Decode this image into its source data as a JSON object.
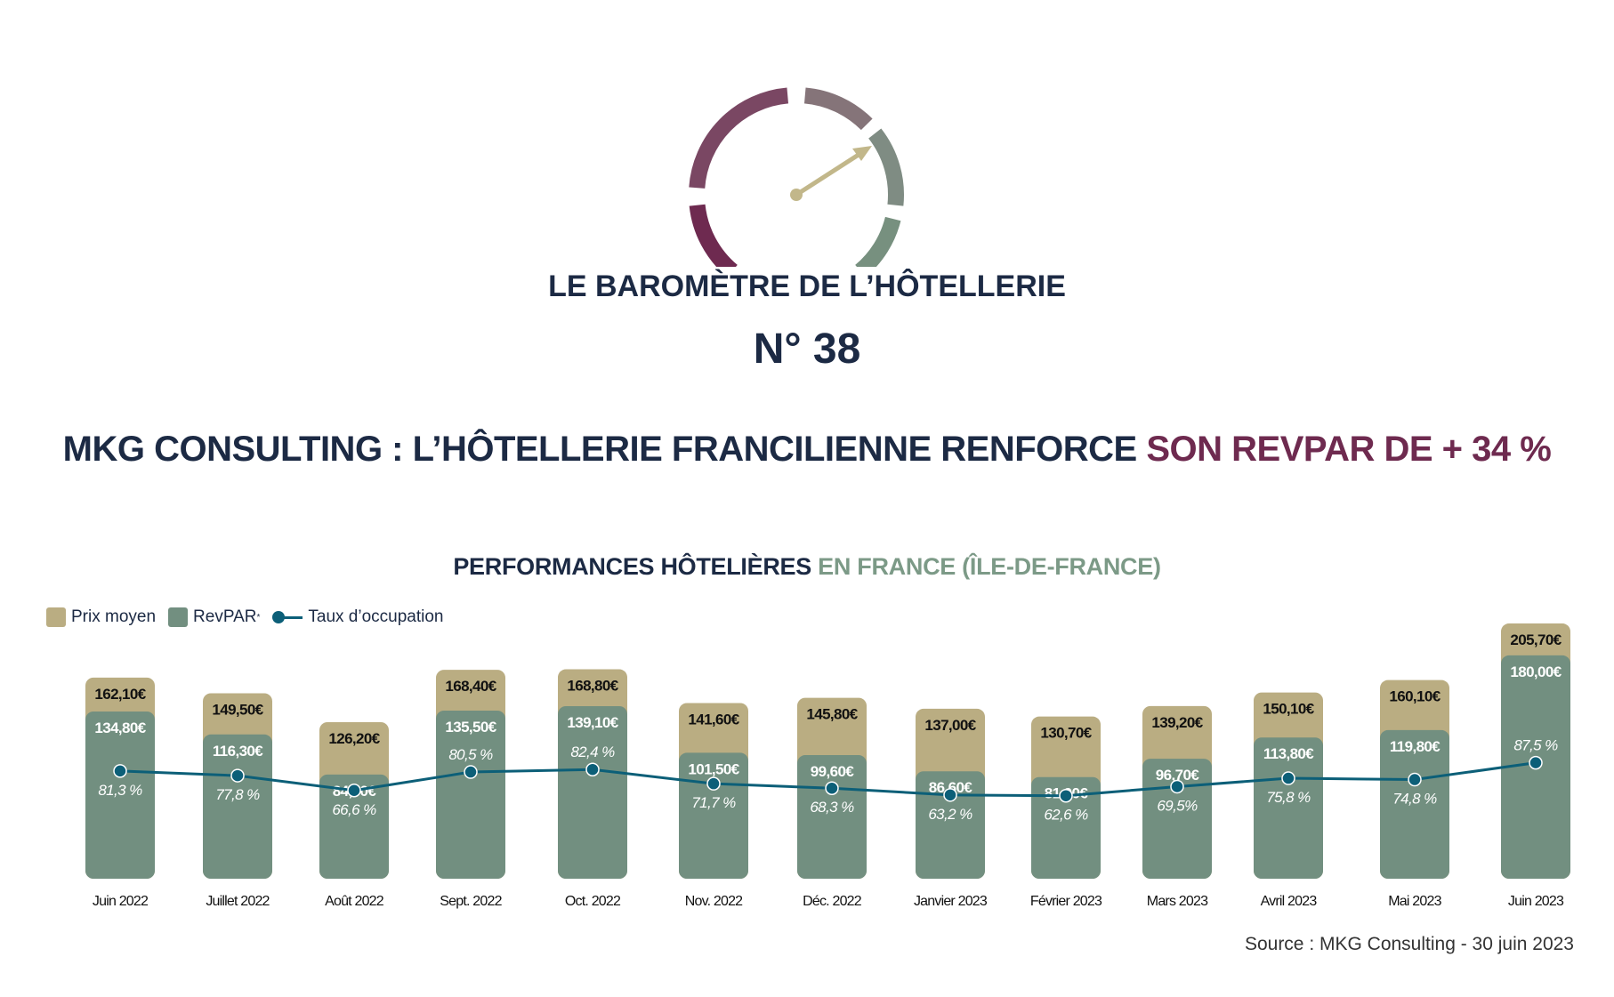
{
  "header": {
    "title": "LE BAROMÈTRE DE L’HÔTELLERIE",
    "number": "N° 38",
    "headline_main": "MKG CONSULTING : L’HÔTELLERIE FRANCILIENNE RENFORCE ",
    "headline_accent": "SON REVPAR DE + 34 %"
  },
  "gauge": {
    "icon": "speedometer-gauge",
    "segment_colors": [
      "#6e2a50",
      "#7a4763",
      "#857479",
      "#7f8c83",
      "#77907f"
    ],
    "needle_color": "#c2b78a"
  },
  "colors": {
    "navy": "#1c2a44",
    "accent_purple": "#6e2a4f",
    "prix_moyen": "#baad82",
    "revpar": "#728f80",
    "taux_occupation": "#0c5f78"
  },
  "chart_data": {
    "type": "bar",
    "title": "PERFORMANCES HÔTELIÈRES ",
    "title_accent": "EN FRANCE (ÎLE-DE-FRANCE)",
    "categories": [
      "Juin 2022",
      "Juillet 2022",
      "Août 2022",
      "Sept. 2022",
      "Oct. 2022",
      "Nov. 2022",
      "Déc. 2022",
      "Janvier 2023",
      "Février 2023",
      "Mars 2023",
      "Avril 2023",
      "Mai 2023",
      "Juin 2023"
    ],
    "series": [
      {
        "name": "Prix moyen",
        "type": "bar",
        "unit": "€",
        "values": [
          162.1,
          149.5,
          126.2,
          168.4,
          168.8,
          141.6,
          145.8,
          137.0,
          130.7,
          139.2,
          150.1,
          160.1,
          205.7
        ],
        "labels": [
          "162,10€",
          "149,50€",
          "126,20€",
          "168,40€",
          "168,80€",
          "141,60€",
          "145,80€",
          "137,00€",
          "130,70€",
          "139,20€",
          "150,10€",
          "160,10€",
          "205,70€"
        ]
      },
      {
        "name": "RevPAR*",
        "type": "bar",
        "unit": "€",
        "values": [
          134.8,
          116.3,
          84.0,
          135.5,
          139.1,
          101.5,
          99.6,
          86.6,
          81.9,
          96.7,
          113.8,
          119.8,
          180.0
        ],
        "labels": [
          "134,80€",
          "116,30€",
          "84,00€",
          "135,50€",
          "139,10€",
          "101,50€",
          "99,60€",
          "86,60€",
          "81,90€",
          "96,70€",
          "113,80€",
          "119,80€",
          "180,00€"
        ]
      },
      {
        "name": "Taux d’occupation",
        "type": "line",
        "unit": "%",
        "values": [
          81.3,
          77.8,
          66.6,
          80.5,
          82.4,
          71.7,
          68.3,
          63.2,
          62.6,
          69.5,
          75.8,
          74.8,
          87.5
        ],
        "labels": [
          "81,3 %",
          "77,8 %",
          "66,6 %",
          "80,5 %",
          "82,4 %",
          "71,7 %",
          "68,3 %",
          "63,2 %",
          "62,6 %",
          "69,5%",
          "75,8 %",
          "74,8 %",
          "87,5 %"
        ]
      }
    ],
    "legend": {
      "placement": "top-left",
      "items": [
        "Prix moyen",
        "RevPAR",
        "Taux d’occupation"
      ],
      "revpar_sup": "*"
    },
    "axes_visible": false,
    "grid": false
  },
  "source": "Source : MKG Consulting - 30 juin 2023"
}
